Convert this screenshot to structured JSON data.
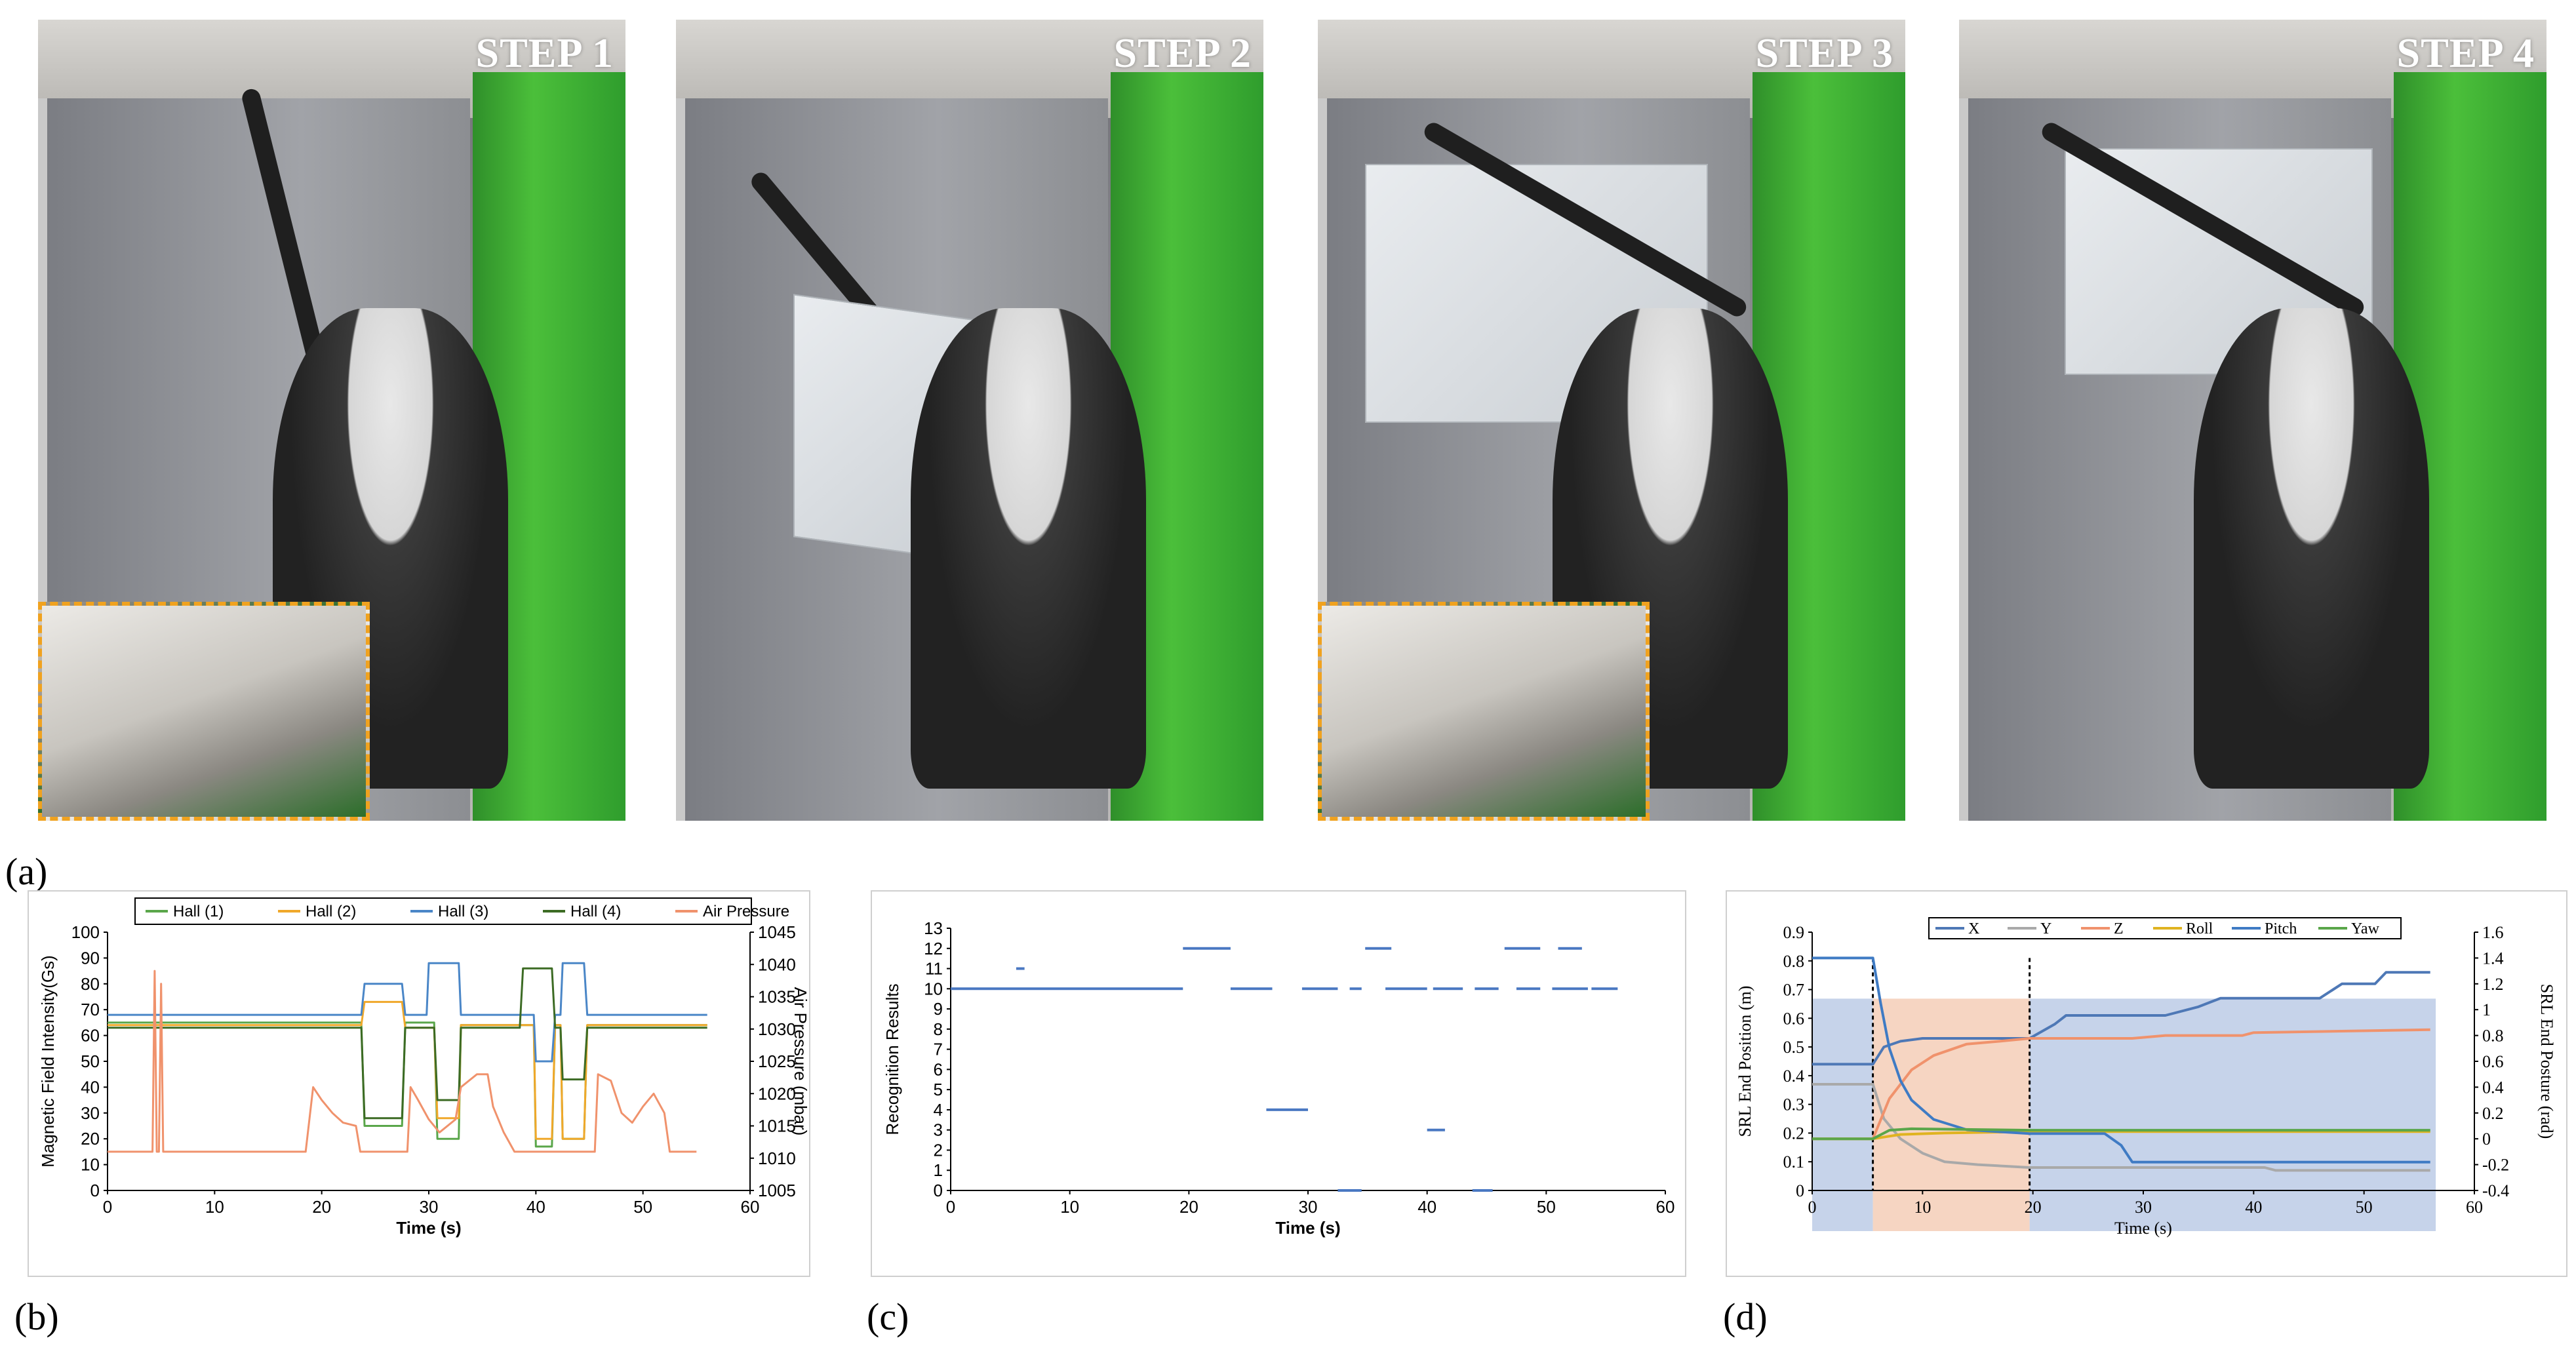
{
  "figure": {
    "panel_labels": {
      "a": "(a)",
      "b": "(b)",
      "c": "(c)",
      "d": "(d)"
    },
    "photos": [
      {
        "step": "STEP 1",
        "inset": true
      },
      {
        "step": "STEP 2",
        "inset": false
      },
      {
        "step": "STEP 3",
        "inset": true
      },
      {
        "step": "STEP 4",
        "inset": false
      }
    ],
    "colors": {
      "inset_border": "#f0a21f",
      "green_screen": "#3fae34"
    }
  },
  "chart_data": [
    {
      "id": "b",
      "type": "line",
      "xlabel": "Time (s)",
      "ylabel": "Magnetic Field Intensity(Gs)",
      "y2label": "Air Pressure (mbar)",
      "xlim": [
        0,
        60
      ],
      "ylim": [
        0,
        100
      ],
      "y2lim": [
        1005,
        1045
      ],
      "xticks": [
        "0",
        "10",
        "20",
        "30",
        "40",
        "50",
        "60"
      ],
      "yticks": [
        "0",
        "10",
        "20",
        "30",
        "40",
        "50",
        "60",
        "70",
        "80",
        "90",
        "100"
      ],
      "y2ticks": [
        "1005",
        "1010",
        "1015",
        "1020",
        "1025",
        "1030",
        "1035",
        "1040",
        "1045"
      ],
      "legend": [
        "Hall (1)",
        "Hall (2)",
        "Hall (3)",
        "Hall (4)",
        "Air Pressure"
      ],
      "series": [
        {
          "name": "Hall (1)",
          "color": "#5aa64a",
          "axis": "left",
          "points": [
            [
              0,
              65
            ],
            [
              23.7,
              65
            ],
            [
              24,
              25
            ],
            [
              27.5,
              25
            ],
            [
              27.8,
              65
            ],
            [
              30.5,
              65
            ],
            [
              30.8,
              20
            ],
            [
              32.8,
              20
            ],
            [
              33,
              64
            ],
            [
              39.8,
              64
            ],
            [
              40,
              17
            ],
            [
              41.5,
              17
            ],
            [
              41.8,
              64
            ],
            [
              42.3,
              64
            ],
            [
              42.5,
              20
            ],
            [
              44.5,
              20
            ],
            [
              44.8,
              64
            ],
            [
              56,
              64
            ]
          ]
        },
        {
          "name": "Hall (2)",
          "color": "#f0a82a",
          "axis": "left",
          "points": [
            [
              0,
              64
            ],
            [
              23.7,
              64
            ],
            [
              24,
              73
            ],
            [
              27.5,
              73
            ],
            [
              27.8,
              63
            ],
            [
              30.5,
              63
            ],
            [
              30.8,
              28
            ],
            [
              32.8,
              28
            ],
            [
              33,
              64
            ],
            [
              39.8,
              64
            ],
            [
              40,
              20
            ],
            [
              41.5,
              20
            ],
            [
              41.8,
              64
            ],
            [
              42.3,
              64
            ],
            [
              42.5,
              20
            ],
            [
              44.5,
              20
            ],
            [
              44.8,
              64
            ],
            [
              56,
              64
            ]
          ]
        },
        {
          "name": "Hall (3)",
          "color": "#4a86c7",
          "axis": "left",
          "points": [
            [
              0,
              68
            ],
            [
              23.7,
              68
            ],
            [
              24,
              80
            ],
            [
              27.5,
              80
            ],
            [
              27.8,
              68
            ],
            [
              29.8,
              68
            ],
            [
              30,
              88
            ],
            [
              32.8,
              88
            ],
            [
              33,
              68
            ],
            [
              39.8,
              68
            ],
            [
              40,
              50
            ],
            [
              41.5,
              50
            ],
            [
              41.8,
              68
            ],
            [
              42.3,
              68
            ],
            [
              42.5,
              88
            ],
            [
              44.5,
              88
            ],
            [
              44.8,
              68
            ],
            [
              56,
              68
            ]
          ]
        },
        {
          "name": "Hall (4)",
          "color": "#3c6b24",
          "axis": "left",
          "points": [
            [
              0,
              63
            ],
            [
              23.7,
              63
            ],
            [
              24,
              28
            ],
            [
              27.5,
              28
            ],
            [
              27.8,
              63
            ],
            [
              30.5,
              63
            ],
            [
              30.8,
              35
            ],
            [
              32.8,
              35
            ],
            [
              33,
              63
            ],
            [
              38.5,
              63
            ],
            [
              38.8,
              86
            ],
            [
              41.5,
              86
            ],
            [
              41.8,
              63
            ],
            [
              42.3,
              63
            ],
            [
              42.5,
              43
            ],
            [
              44.5,
              43
            ],
            [
              44.8,
              63
            ],
            [
              56,
              63
            ]
          ]
        },
        {
          "name": "Air Pressure",
          "color": "#f0926c",
          "axis": "right",
          "points": [
            [
              0,
              1011
            ],
            [
              4.2,
              1011
            ],
            [
              4.4,
              1039
            ],
            [
              4.6,
              1011
            ],
            [
              4.8,
              1011
            ],
            [
              5.0,
              1037
            ],
            [
              5.2,
              1011
            ],
            [
              18.5,
              1011
            ],
            [
              19.2,
              1021
            ],
            [
              20,
              1019
            ],
            [
              21,
              1017
            ],
            [
              22,
              1015.5
            ],
            [
              23.2,
              1015
            ],
            [
              23.6,
              1011
            ],
            [
              28,
              1011
            ],
            [
              28.3,
              1021
            ],
            [
              29,
              1019
            ],
            [
              30,
              1016
            ],
            [
              31,
              1014
            ],
            [
              32.5,
              1016
            ],
            [
              33,
              1021
            ],
            [
              34.5,
              1023
            ],
            [
              35.5,
              1023
            ],
            [
              36,
              1018
            ],
            [
              37,
              1014
            ],
            [
              38,
              1011
            ],
            [
              45.5,
              1011
            ],
            [
              45.8,
              1023
            ],
            [
              47,
              1022
            ],
            [
              48,
              1017
            ],
            [
              49,
              1015.5
            ],
            [
              50,
              1018
            ],
            [
              51,
              1020
            ],
            [
              52,
              1017
            ],
            [
              52.5,
              1011
            ],
            [
              55,
              1011
            ]
          ]
        }
      ]
    },
    {
      "id": "c",
      "type": "scatter",
      "xlabel": "Time (s)",
      "ylabel": "Recognition Results",
      "xlim": [
        0,
        60
      ],
      "ylim": [
        0,
        13
      ],
      "xticks": [
        "0",
        "10",
        "20",
        "30",
        "40",
        "50",
        "60"
      ],
      "yticks": [
        "0",
        "1",
        "2",
        "3",
        "4",
        "5",
        "6",
        "7",
        "8",
        "9",
        "10",
        "11",
        "12",
        "13"
      ],
      "segments": [
        {
          "x": [
            0,
            19.5
          ],
          "y": 10
        },
        {
          "x": [
            5.5,
            6.2
          ],
          "y": 11
        },
        {
          "x": [
            19.5,
            23.5
          ],
          "y": 12
        },
        {
          "x": [
            23.5,
            27.0
          ],
          "y": 10
        },
        {
          "x": [
            26.5,
            30.0
          ],
          "y": 4
        },
        {
          "x": [
            29.5,
            32.5
          ],
          "y": 10
        },
        {
          "x": [
            32.5,
            34.5
          ],
          "y": 0
        },
        {
          "x": [
            33.5,
            34.5
          ],
          "y": 10
        },
        {
          "x": [
            34.8,
            37.0
          ],
          "y": 12
        },
        {
          "x": [
            36.5,
            40.0
          ],
          "y": 10
        },
        {
          "x": [
            40.0,
            41.5
          ],
          "y": 3
        },
        {
          "x": [
            40.5,
            43.0
          ],
          "y": 10
        },
        {
          "x": [
            43.8,
            45.5
          ],
          "y": 0
        },
        {
          "x": [
            44.0,
            46.0
          ],
          "y": 10
        },
        {
          "x": [
            46.5,
            49.5
          ],
          "y": 12
        },
        {
          "x": [
            47.5,
            49.5
          ],
          "y": 10
        },
        {
          "x": [
            51.0,
            53.0
          ],
          "y": 12
        },
        {
          "x": [
            50.5,
            53.5
          ],
          "y": 10
        },
        {
          "x": [
            53.8,
            56.0
          ],
          "y": 10
        }
      ],
      "color": "#4a78c2"
    },
    {
      "id": "d",
      "type": "line",
      "xlabel": "Time (s)",
      "ylabel": "SRL End Position (m)",
      "y2label": "SRL End Posture (rad)",
      "xlim": [
        0,
        60
      ],
      "ylim": [
        0,
        0.9
      ],
      "y2lim": [
        -0.4,
        1.6
      ],
      "xticks": [
        "0",
        "10",
        "20",
        "30",
        "40",
        "50",
        "60"
      ],
      "yticks": [
        "0",
        "0.1",
        "0.2",
        "0.3",
        "0.4",
        "0.5",
        "0.6",
        "0.7",
        "0.8",
        "0.9"
      ],
      "y2ticks": [
        "-0.4",
        "-0.2",
        "0",
        "0.2",
        "0.4",
        "0.6",
        "0.8",
        "1",
        "1.2",
        "1.4",
        "1.6"
      ],
      "legend": [
        "X",
        "Y",
        "Z",
        "Roll",
        "Pitch",
        "Yaw"
      ],
      "phases": [
        {
          "x": [
            0,
            5.5
          ],
          "color": "#c6d3ea"
        },
        {
          "x": [
            5.5,
            19.7
          ],
          "color": "#f6d5c2"
        },
        {
          "x": [
            19.7,
            56.5
          ],
          "color": "#c6d3ea"
        }
      ],
      "dividers": [
        5.5,
        19.7
      ],
      "series": [
        {
          "name": "X",
          "color": "#4e78b6",
          "axis": "left",
          "points": [
            [
              0,
              0.44
            ],
            [
              5.5,
              0.44
            ],
            [
              6.5,
              0.5
            ],
            [
              8,
              0.52
            ],
            [
              10,
              0.53
            ],
            [
              19.7,
              0.53
            ],
            [
              22,
              0.58
            ],
            [
              23,
              0.61
            ],
            [
              32,
              0.61
            ],
            [
              35,
              0.64
            ],
            [
              37,
              0.67
            ],
            [
              46,
              0.67
            ],
            [
              48,
              0.72
            ],
            [
              51,
              0.72
            ],
            [
              52,
              0.76
            ],
            [
              56,
              0.76
            ]
          ]
        },
        {
          "name": "Y",
          "color": "#a9a9a9",
          "axis": "left",
          "points": [
            [
              0,
              0.37
            ],
            [
              5.5,
              0.37
            ],
            [
              6.5,
              0.25
            ],
            [
              8,
              0.18
            ],
            [
              10,
              0.13
            ],
            [
              12,
              0.1
            ],
            [
              15,
              0.09
            ],
            [
              19.7,
              0.08
            ],
            [
              41,
              0.08
            ],
            [
              42,
              0.07
            ],
            [
              56,
              0.07
            ]
          ]
        },
        {
          "name": "Z",
          "color": "#f0926c",
          "axis": "left",
          "points": [
            [
              0,
              0.18
            ],
            [
              5.5,
              0.18
            ],
            [
              7,
              0.32
            ],
            [
              9,
              0.42
            ],
            [
              11,
              0.47
            ],
            [
              14,
              0.51
            ],
            [
              17,
              0.52
            ],
            [
              19.7,
              0.53
            ],
            [
              29,
              0.53
            ],
            [
              32,
              0.54
            ],
            [
              39,
              0.54
            ],
            [
              40,
              0.55
            ],
            [
              56,
              0.56
            ]
          ]
        },
        {
          "name": "Roll",
          "color": "#e0b320",
          "axis": "left",
          "points": [
            [
              0,
              0.18
            ],
            [
              5.5,
              0.18
            ],
            [
              8,
              0.195
            ],
            [
              12,
              0.2
            ],
            [
              19.7,
              0.205
            ],
            [
              56,
              0.205
            ]
          ]
        },
        {
          "name": "Pitch",
          "color": "#3f7bc4",
          "axis": "right",
          "points": [
            [
              0,
              1.4
            ],
            [
              5.5,
              1.4
            ],
            [
              6.2,
              1.05
            ],
            [
              7,
              0.7
            ],
            [
              8,
              0.45
            ],
            [
              9,
              0.3
            ],
            [
              11,
              0.15
            ],
            [
              14,
              0.07
            ],
            [
              19.7,
              0.04
            ],
            [
              26.5,
              0.04
            ],
            [
              28,
              -0.05
            ],
            [
              29,
              -0.18
            ],
            [
              56,
              -0.18
            ]
          ]
        },
        {
          "name": "Yaw",
          "color": "#5aa64a",
          "axis": "left",
          "points": [
            [
              0,
              0.18
            ],
            [
              5.5,
              0.18
            ],
            [
              7,
              0.21
            ],
            [
              9,
              0.215
            ],
            [
              19.7,
              0.21
            ],
            [
              56,
              0.21
            ]
          ]
        }
      ]
    }
  ]
}
